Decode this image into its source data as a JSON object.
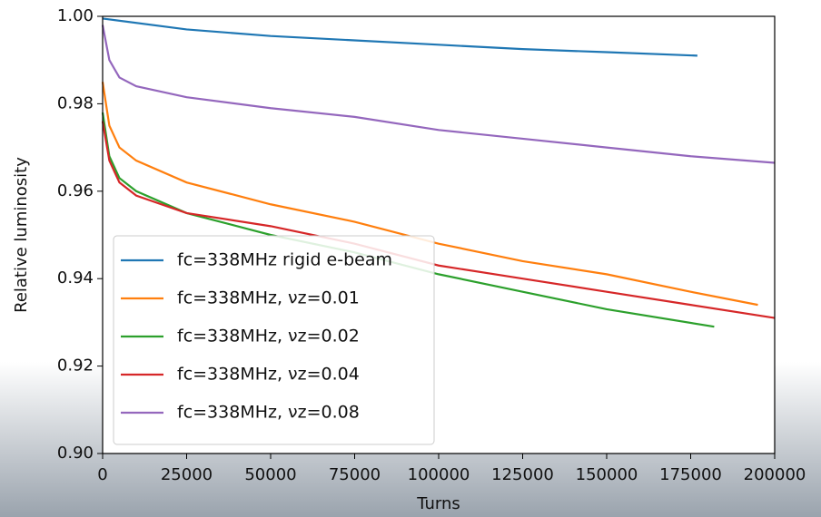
{
  "chart_data": {
    "type": "line",
    "x_label": "Turns",
    "y_label": "Relative luminosity",
    "xlim": [
      0,
      200000
    ],
    "ylim": [
      0.9,
      1.0
    ],
    "xticks": [
      0,
      25000,
      50000,
      75000,
      100000,
      125000,
      150000,
      175000,
      200000
    ],
    "yticks": [
      {
        "value": 0.9,
        "label": "0.90"
      },
      0.92,
      0.94,
      0.96,
      0.98,
      {
        "value": 1.0,
        "label": "1.00"
      }
    ],
    "legend": "lower left",
    "series": [
      {
        "name": "fc=338MHz rigid e-beam",
        "color": "#1f77b4",
        "x": [
          0,
          25000,
          50000,
          75000,
          100000,
          125000,
          150000,
          177000
        ],
        "values": [
          0.9995,
          0.997,
          0.9955,
          0.9945,
          0.9935,
          0.9925,
          0.9918,
          0.991
        ]
      },
      {
        "name": "fc=338MHz, νz=0.01",
        "color": "#ff7f0e",
        "x": [
          0,
          2000,
          5000,
          10000,
          25000,
          50000,
          75000,
          100000,
          125000,
          150000,
          175000,
          195000
        ],
        "values": [
          0.985,
          0.975,
          0.97,
          0.967,
          0.962,
          0.957,
          0.953,
          0.948,
          0.944,
          0.941,
          0.937,
          0.934
        ]
      },
      {
        "name": "fc=338MHz, νz=0.02",
        "color": "#2ca02c",
        "x": [
          0,
          2000,
          5000,
          10000,
          25000,
          50000,
          75000,
          100000,
          125000,
          150000,
          182000
        ],
        "values": [
          0.978,
          0.968,
          0.963,
          0.96,
          0.955,
          0.95,
          0.946,
          0.941,
          0.937,
          0.933,
          0.929
        ]
      },
      {
        "name": "fc=338MHz, νz=0.04",
        "color": "#d62728",
        "x": [
          0,
          2000,
          5000,
          10000,
          25000,
          50000,
          75000,
          100000,
          125000,
          150000,
          175000,
          200000
        ],
        "values": [
          0.976,
          0.967,
          0.962,
          0.959,
          0.955,
          0.952,
          0.948,
          0.943,
          0.94,
          0.937,
          0.934,
          0.931
        ]
      },
      {
        "name": "fc=338MHz, νz=0.08",
        "color": "#9467bd",
        "x": [
          0,
          2000,
          5000,
          10000,
          25000,
          50000,
          75000,
          100000,
          125000,
          150000,
          175000,
          200000
        ],
        "values": [
          0.998,
          0.99,
          0.986,
          0.984,
          0.9815,
          0.979,
          0.977,
          0.974,
          0.972,
          0.97,
          0.968,
          0.9665
        ]
      }
    ]
  }
}
